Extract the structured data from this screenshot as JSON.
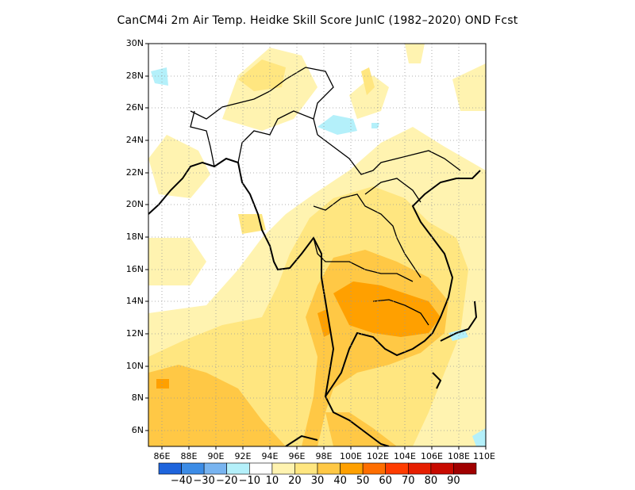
{
  "title": "CanCM4i  2m Air Temp. Heidke Skill Score JunIC (1982–2020) OND Fcst",
  "map": {
    "lon_range": [
      85,
      110
    ],
    "lat_range": [
      5,
      30
    ],
    "lon_ticks": [
      "86E",
      "88E",
      "90E",
      "92E",
      "94E",
      "96E",
      "98E",
      "100E",
      "102E",
      "104E",
      "106E",
      "108E",
      "110E"
    ],
    "lat_ticks": [
      "6N",
      "8N",
      "10N",
      "12N",
      "14N",
      "16N",
      "18N",
      "20N",
      "22N",
      "24N",
      "26N",
      "28N",
      "30N"
    ],
    "gridlines": "dotted",
    "skill_regions": [
      {
        "level": "10-20",
        "color": "#fff3b0",
        "area": "northern Myanmar / Yunnan fringe"
      },
      {
        "level": "10-20",
        "color": "#fff3b0",
        "area": "Bay of Bengal and Andaman Sea"
      },
      {
        "level": "20-30",
        "color": "#ffe680",
        "area": "Myanmar coast, Thailand, Laos"
      },
      {
        "level": "30-40",
        "color": "#ffc845",
        "area": "central Thailand, Cambodia, Gulf of Thailand, southern Bay of Bengal"
      },
      {
        "level": "40-50",
        "color": "#ffa000",
        "area": "Cambodia / eastern Thailand core"
      },
      {
        "level": "-20--10",
        "color": "#b4f0fa",
        "area": "eastern Tibet edge, Myanmar-Yunnan border, southern Vietnam coast"
      }
    ]
  },
  "colorbar": {
    "colors": [
      "#1e64dc",
      "#3c8ce6",
      "#78b4f0",
      "#b4f0fa",
      "#ffffff",
      "#fff3b0",
      "#ffe680",
      "#ffc845",
      "#ffa000",
      "#ff6e00",
      "#ff3c00",
      "#e61e00",
      "#c80a00",
      "#a00000"
    ],
    "labels": [
      "−40",
      "−30",
      "−20",
      "−10",
      "10",
      "20",
      "30",
      "40",
      "50",
      "60",
      "70",
      "80",
      "90"
    ]
  }
}
